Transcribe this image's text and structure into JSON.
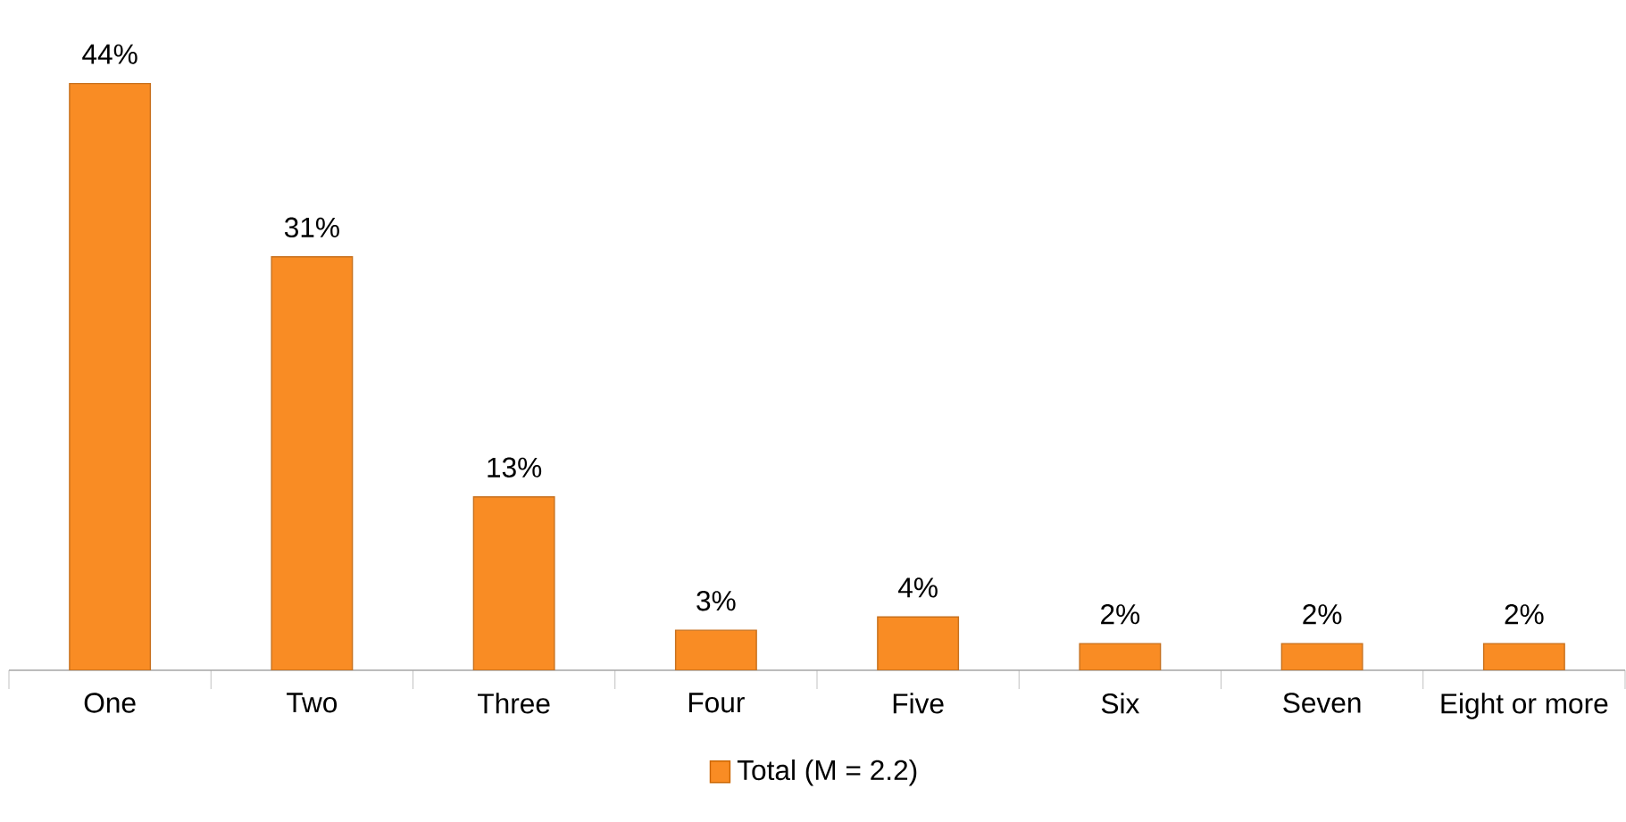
{
  "chart_data": {
    "type": "bar",
    "categories": [
      "One",
      "Two",
      "Three",
      "Four",
      "Five",
      "Six",
      "Seven",
      "Eight or more"
    ],
    "series": [
      {
        "name": "Total (M = 2.2)",
        "color": "#f98c24",
        "values": [
          44,
          31,
          13,
          3,
          4,
          2,
          2,
          2
        ],
        "value_labels": [
          "44%",
          "31%",
          "13%",
          "3%",
          "4%",
          "2%",
          "2%",
          "2%"
        ]
      }
    ],
    "legend": "bottom"
  }
}
